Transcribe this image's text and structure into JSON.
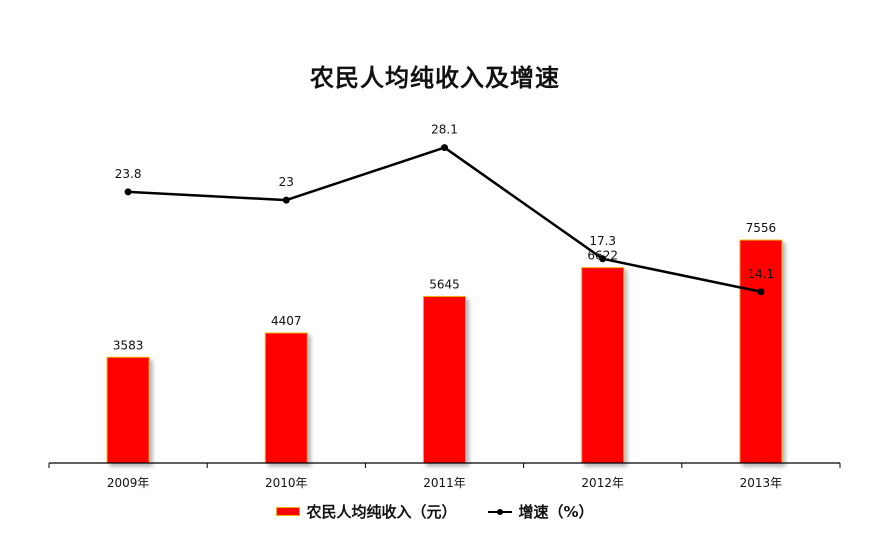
{
  "chart_data": {
    "type": "bar+line",
    "title": "农民人均纯收入及增速",
    "categories": [
      "2009年",
      "2010年",
      "2011年",
      "2012年",
      "2013年"
    ],
    "series": [
      {
        "name": "农民人均纯收入（元）",
        "type": "bar",
        "values": [
          3583,
          4407,
          5645,
          6622,
          7556
        ],
        "color": "#ff0000"
      },
      {
        "name": "增速（%）",
        "type": "line",
        "values": [
          23.8,
          23,
          28.1,
          17.3,
          14.1
        ],
        "color": "#000000"
      }
    ],
    "data_labels": {
      "bar": [
        "3583",
        "4407",
        "5645",
        "6622",
        "7556"
      ],
      "line": [
        "23.8",
        "23",
        "28.1",
        "17.3",
        "14.1"
      ]
    },
    "legend": "bottom-center",
    "grid": false
  }
}
